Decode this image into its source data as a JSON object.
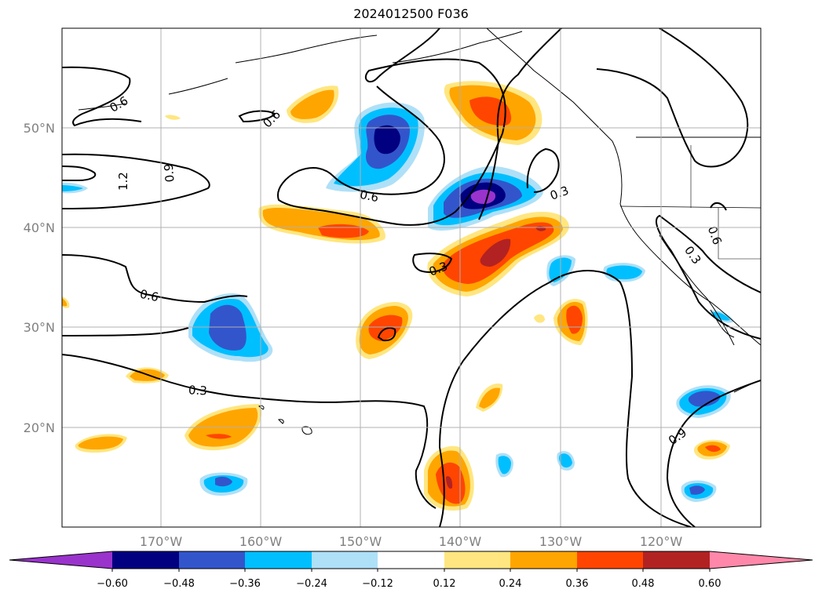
{
  "title": "2024012500 F036",
  "lat_labels": [
    "50°N",
    "40°N",
    "30°N",
    "20°N"
  ],
  "lon_labels": [
    "170°W",
    "160°W",
    "150°W",
    "140°W",
    "130°W",
    "120°W"
  ],
  "colorbar": {
    "ticks": [
      "−0.60",
      "−0.48",
      "−0.36",
      "−0.24",
      "−0.12",
      "0.12",
      "0.24",
      "0.36",
      "0.48",
      "0.60"
    ],
    "colors": [
      "#9933cc",
      "#000080",
      "#3355cc",
      "#00bfff",
      "#aee0f8",
      "#ffffff",
      "#ffe680",
      "#ffa500",
      "#ff4500",
      "#b22222",
      "#ff88aa"
    ]
  },
  "contour_labels": [
    "0.6",
    "0.6",
    "1.2",
    "0.9",
    "0.6",
    "0.6",
    "0.3",
    "0.3",
    "0.6",
    "0.3",
    "0.3",
    "0.9",
    "0.3"
  ]
}
